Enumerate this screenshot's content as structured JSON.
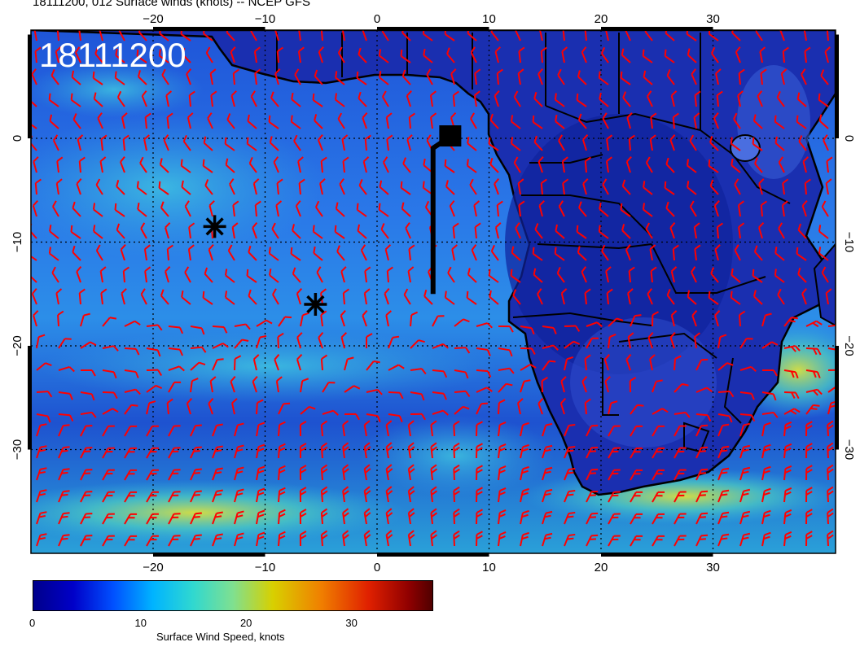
{
  "title": "18111200, 012 Surface winds (knots) -- NCEP GFS",
  "stamp": "18111200",
  "map": {
    "lon_labels_top": [
      "−20",
      "−10",
      "0",
      "10",
      "20",
      "30"
    ],
    "lon_labels_bottom": [
      "−20",
      "−10",
      "0",
      "10",
      "20",
      "30"
    ],
    "lat_labels_left": [
      "0",
      "−10",
      "−20",
      "−30"
    ],
    "lat_labels_right": [
      "0",
      "−10",
      "−20",
      "−30"
    ],
    "markers": [
      {
        "type": "asterisk",
        "lon": -14.5,
        "lat": -8.5
      },
      {
        "type": "asterisk",
        "lon": -5.5,
        "lat": -16.0
      },
      {
        "type": "square",
        "lon": 6.5,
        "lat": 0.0
      }
    ],
    "track_line": {
      "lon": 5.0,
      "lat_from": 0.0,
      "lat_to": -15.0
    },
    "barb_color": "#ff0000",
    "ocean_color": "#2060e0",
    "land_color": "#1428a8"
  },
  "legend": {
    "label": "Surface Wind Speed, knots",
    "ticks": [
      "0",
      "10",
      "20",
      "30"
    ],
    "tick_values": [
      0,
      10,
      20,
      30
    ],
    "range": [
      0,
      38
    ]
  }
}
